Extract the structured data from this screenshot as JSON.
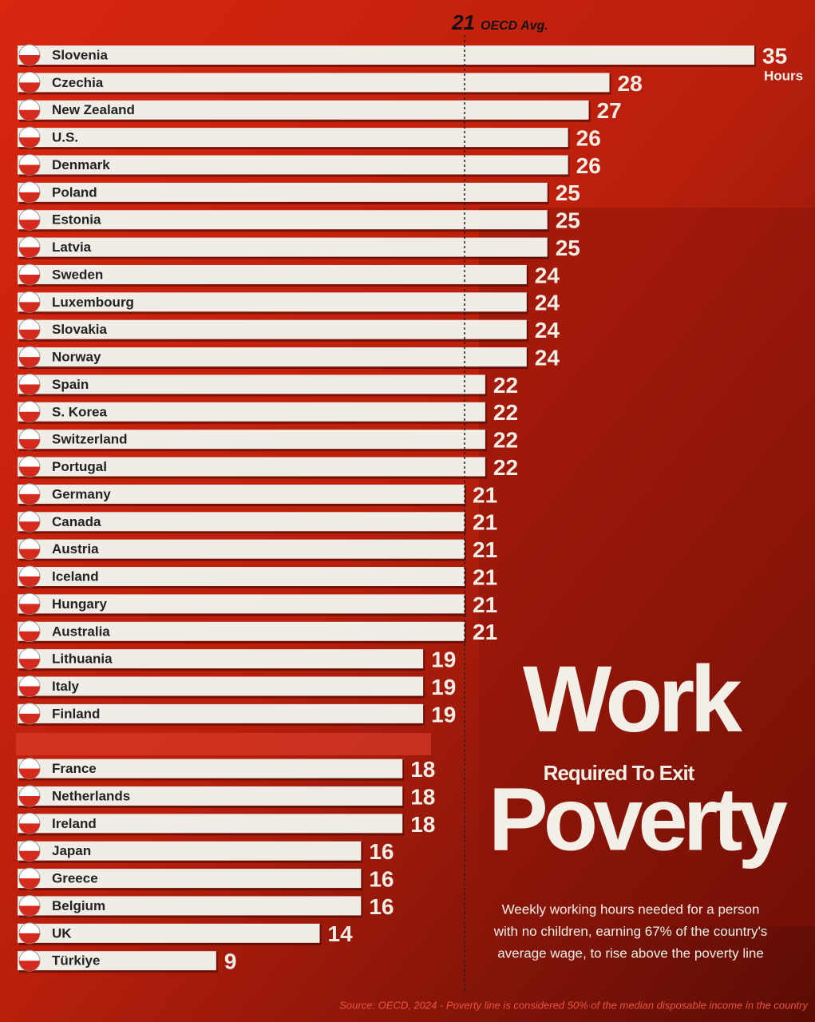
{
  "chart_data": {
    "type": "bar",
    "orientation": "horizontal",
    "title": "Work",
    "title_middle": "Required To Exit",
    "title_bottom": "Poverty",
    "subtitle": [
      "Weekly working hours needed for a person",
      "with no children, earning 67% of the country's",
      "average wage, to rise above the poverty line"
    ],
    "source": "Source: OECD, 2024 - Poverty line is considered 50% of the median disposable income in the country",
    "unit_label": "Hours",
    "categories": [
      "Slovenia",
      "Czechia",
      "New Zealand",
      "U.S.",
      "Denmark",
      "Poland",
      "Estonia",
      "Latvia",
      "Sweden",
      "Luxembourg",
      "Slovakia",
      "Norway",
      "Spain",
      "S. Korea",
      "Switzerland",
      "Portugal",
      "Germany",
      "Canada",
      "Austria",
      "Iceland",
      "Hungary",
      "Australia",
      "Lithuania",
      "Italy",
      "Finland",
      "France",
      "Netherlands",
      "Ireland",
      "Japan",
      "Greece",
      "Belgium",
      "UK",
      "Türkiye"
    ],
    "values": [
      35,
      28,
      27,
      26,
      26,
      25,
      25,
      25,
      24,
      24,
      24,
      24,
      22,
      22,
      22,
      22,
      21,
      21,
      21,
      21,
      21,
      21,
      19,
      19,
      19,
      18,
      18,
      18,
      16,
      16,
      16,
      14,
      9
    ],
    "xlim": [
      0,
      35
    ],
    "color": "#f0ede6",
    "reference_line": {
      "value": 21,
      "label": "OECD Avg."
    }
  }
}
